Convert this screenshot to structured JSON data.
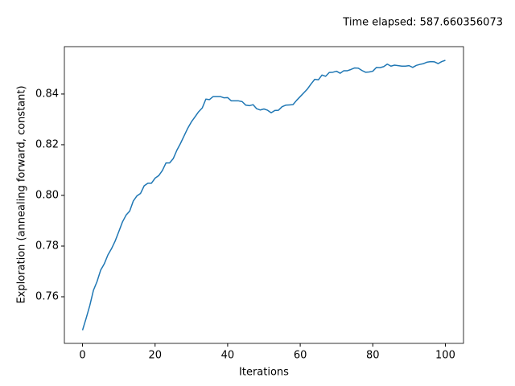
{
  "chart_data": {
    "type": "line",
    "annotation": "Time elapsed: 587.660356073",
    "x_label": "Iterations",
    "y_label": "Exploration (annealing forward, constant)",
    "x": [
      0,
      1,
      2,
      3,
      4,
      5,
      6,
      7,
      8,
      9,
      10,
      11,
      12,
      13,
      14,
      15,
      16,
      17,
      18,
      19,
      20,
      21,
      22,
      23,
      24,
      25,
      26,
      27,
      28,
      29,
      30,
      31,
      32,
      33,
      34,
      35,
      36,
      37,
      38,
      39,
      40,
      41,
      42,
      43,
      44,
      45,
      46,
      47,
      48,
      49,
      50,
      51,
      52,
      53,
      54,
      55,
      56,
      57,
      58,
      59,
      60,
      61,
      62,
      63,
      64,
      65,
      66,
      67,
      68,
      69,
      70,
      71,
      72,
      73,
      74,
      75,
      76,
      77,
      78,
      79,
      80,
      81,
      82,
      83,
      84,
      85,
      86,
      87,
      88,
      89,
      90,
      91,
      92,
      93,
      94,
      95,
      96,
      97,
      98,
      99,
      100
    ],
    "series": [
      {
        "color": "#1f77b4",
        "values": [
          0.7468,
          0.7515,
          0.7565,
          0.7625,
          0.766,
          0.7705,
          0.773,
          0.7765,
          0.779,
          0.782,
          0.7857,
          0.7895,
          0.7922,
          0.7938,
          0.7978,
          0.7998,
          0.8008,
          0.8038,
          0.8048,
          0.8048,
          0.8068,
          0.8078,
          0.8098,
          0.8128,
          0.8128,
          0.8145,
          0.8178,
          0.8205,
          0.8235,
          0.8265,
          0.829,
          0.831,
          0.833,
          0.8345,
          0.838,
          0.8378,
          0.839,
          0.839,
          0.839,
          0.8385,
          0.8386,
          0.8373,
          0.8373,
          0.8373,
          0.837,
          0.8356,
          0.8354,
          0.8358,
          0.8342,
          0.8337,
          0.8341,
          0.8336,
          0.8326,
          0.8335,
          0.8336,
          0.835,
          0.8356,
          0.8357,
          0.8358,
          0.8375,
          0.839,
          0.8405,
          0.842,
          0.844,
          0.8458,
          0.8456,
          0.8475,
          0.847,
          0.8485,
          0.8486,
          0.849,
          0.8482,
          0.8492,
          0.8492,
          0.8497,
          0.8503,
          0.8502,
          0.8493,
          0.8486,
          0.8487,
          0.849,
          0.8505,
          0.8504,
          0.8508,
          0.8518,
          0.851,
          0.8514,
          0.8512,
          0.851,
          0.851,
          0.8512,
          0.8505,
          0.8513,
          0.8517,
          0.852,
          0.8526,
          0.8528,
          0.8527,
          0.852,
          0.8528,
          0.8533
        ]
      }
    ],
    "xlim": [
      -5,
      105
    ],
    "xticks": [
      0,
      20,
      40,
      60,
      80,
      100
    ],
    "ylim": [
      0.7416,
      0.8587
    ],
    "yticks": [
      0.76,
      0.78,
      {
        "value": 0.8,
        "label": "0.80"
      },
      0.82,
      0.84
    ],
    "grid": false
  }
}
